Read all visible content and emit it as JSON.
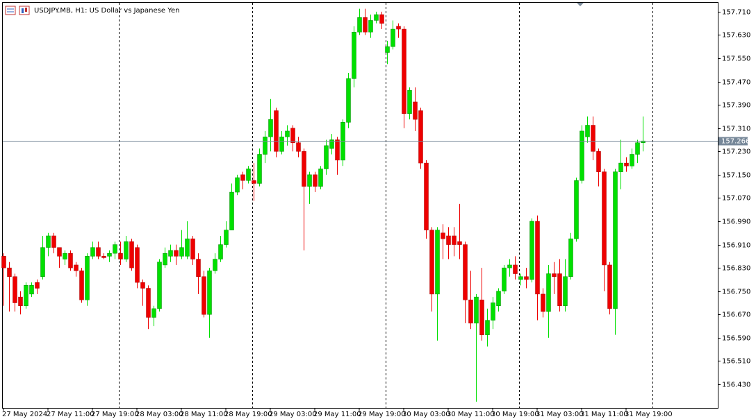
{
  "chart_data": {
    "type": "candlestick",
    "title": "USDJPY.MB, H1:  US Dollar vs Japanese Yen",
    "up_color": "#00e000",
    "down_color": "#ee0000",
    "price_line": 157.266,
    "ylim": [
      156.349,
      157.743
    ],
    "yticks": [
      {
        "value": 157.71,
        "label": "157.710"
      },
      {
        "value": 157.63,
        "label": "157.630"
      },
      {
        "value": 157.55,
        "label": "157.550"
      },
      {
        "value": 157.47,
        "label": "157.470"
      },
      {
        "value": 157.39,
        "label": "157.390"
      },
      {
        "value": 157.31,
        "label": "157.310"
      },
      {
        "value": 157.23,
        "label": "157.230"
      },
      {
        "value": 157.15,
        "label": "157.150"
      },
      {
        "value": 157.07,
        "label": "157.070"
      },
      {
        "value": 156.99,
        "label": "156.990"
      },
      {
        "value": 156.91,
        "label": "156.910"
      },
      {
        "value": 156.83,
        "label": "156.830"
      },
      {
        "value": 156.75,
        "label": "156.750"
      },
      {
        "value": 156.67,
        "label": "156.670"
      },
      {
        "value": 156.59,
        "label": "156.590"
      },
      {
        "value": 156.51,
        "label": "156.510"
      },
      {
        "value": 156.43,
        "label": "156.430"
      }
    ],
    "categories": [
      "27 May 2024",
      null,
      null,
      null,
      null,
      null,
      null,
      null,
      "27 May 11:00",
      null,
      null,
      null,
      null,
      null,
      null,
      null,
      "27 May 19:00",
      null,
      null,
      null,
      null,
      null,
      null,
      null,
      "28 May 03:00",
      null,
      null,
      null,
      null,
      null,
      null,
      null,
      "28 May 11:00",
      null,
      null,
      null,
      null,
      null,
      null,
      null,
      "28 May 19:00",
      null,
      null,
      null,
      null,
      null,
      null,
      null,
      "29 May 03:00",
      null,
      null,
      null,
      null,
      null,
      null,
      null,
      "29 May 11:00",
      null,
      null,
      null,
      null,
      null,
      null,
      null,
      "29 May 19:00",
      null,
      null,
      null,
      null,
      null,
      null,
      null,
      "30 May 03:00",
      null,
      null,
      null,
      null,
      null,
      null,
      null,
      "30 May 11:00",
      null,
      null,
      null,
      null,
      null,
      null,
      null,
      "30 May 19:00",
      null,
      null,
      null,
      null,
      null,
      null,
      null,
      "31 May 03:00",
      null,
      null,
      null,
      null,
      null,
      null,
      null,
      "31 May 11:00",
      null,
      null,
      null,
      null,
      null,
      null,
      null,
      "31 May 19:00",
      null,
      null,
      null
    ],
    "open": [
      156.87,
      156.83,
      156.8,
      156.73,
      156.7,
      156.74,
      156.78,
      156.8,
      156.9,
      156.94,
      156.9,
      156.86,
      156.88,
      156.84,
      156.82,
      156.72,
      156.87,
      156.9,
      156.87,
      156.87,
      156.88,
      156.88,
      156.86,
      156.92,
      156.9,
      156.78,
      156.76,
      156.66,
      156.69,
      156.84,
      156.87,
      156.89,
      156.87,
      156.87,
      156.93,
      156.86,
      156.8,
      156.67,
      156.82,
      156.86,
      156.91,
      156.96,
      157.09,
      157.15,
      157.13,
      157.13,
      157.12,
      157.22,
      157.28,
      157.37,
      157.23,
      157.28,
      157.31,
      157.26,
      157.23,
      157.11,
      157.15,
      157.11,
      157.17,
      157.24,
      157.27,
      157.2,
      157.33,
      157.48,
      157.64,
      157.69,
      157.64,
      157.68,
      157.7,
      157.57,
      157.59,
      157.66,
      157.65,
      157.36,
      157.4,
      157.37,
      157.19,
      156.96,
      156.74,
      156.95,
      156.94,
      156.94,
      156.92,
      156.91,
      156.72,
      156.64,
      156.72,
      156.6,
      156.65,
      156.7,
      156.75,
      156.83,
      156.84,
      156.79,
      156.8,
      156.79,
      156.99,
      156.74,
      156.68,
      156.81,
      156.81,
      156.7,
      156.8,
      156.93,
      157.13,
      157.28,
      157.32,
      157.23,
      157.16,
      156.84,
      156.69,
      157.16,
      157.19,
      157.18,
      157.22,
      157.26
    ],
    "high": [
      156.88,
      156.85,
      156.81,
      156.75,
      156.78,
      156.78,
      156.79,
      156.94,
      156.95,
      156.95,
      156.9,
      156.89,
      156.89,
      156.85,
      156.83,
      156.88,
      156.92,
      156.92,
      156.88,
      156.89,
      156.92,
      156.92,
      156.94,
      156.93,
      156.91,
      156.79,
      156.77,
      156.7,
      156.86,
      156.9,
      156.91,
      156.91,
      156.96,
      156.99,
      156.94,
      156.88,
      156.82,
      156.83,
      156.88,
      156.94,
      156.99,
      157.12,
      157.15,
      157.16,
      157.18,
      157.19,
      157.24,
      157.3,
      157.41,
      157.38,
      157.3,
      157.32,
      157.32,
      157.28,
      157.24,
      157.16,
      157.16,
      157.18,
      157.27,
      157.29,
      157.28,
      157.34,
      157.5,
      157.66,
      157.72,
      157.72,
      157.7,
      157.71,
      157.71,
      157.61,
      157.68,
      157.67,
      157.66,
      157.45,
      157.45,
      157.38,
      157.2,
      156.97,
      156.97,
      156.98,
      156.97,
      156.97,
      157.05,
      156.92,
      156.82,
      156.74,
      156.83,
      156.69,
      156.73,
      156.76,
      156.84,
      156.86,
      156.87,
      156.81,
      156.83,
      157.0,
      157.01,
      156.76,
      156.84,
      156.85,
      156.86,
      156.86,
      156.95,
      157.14,
      157.32,
      157.35,
      157.35,
      157.24,
      157.17,
      156.85,
      157.17,
      157.27,
      157.21,
      157.24,
      157.27,
      157.35
    ],
    "low": [
      156.7,
      156.68,
      156.68,
      156.67,
      156.69,
      156.73,
      156.74,
      156.79,
      156.87,
      156.88,
      156.83,
      156.84,
      156.82,
      156.8,
      156.71,
      156.7,
      156.86,
      156.86,
      156.86,
      156.85,
      156.86,
      156.84,
      156.85,
      156.82,
      156.76,
      156.7,
      156.62,
      156.63,
      156.68,
      156.83,
      156.85,
      156.84,
      156.86,
      156.86,
      156.84,
      156.74,
      156.66,
      156.59,
      156.81,
      156.85,
      156.9,
      156.96,
      157.08,
      157.1,
      157.12,
      157.06,
      157.11,
      157.19,
      157.23,
      157.21,
      157.22,
      157.25,
      157.23,
      157.21,
      156.89,
      157.05,
      157.09,
      157.1,
      157.15,
      157.22,
      157.15,
      157.18,
      157.31,
      157.45,
      157.63,
      157.63,
      157.62,
      157.67,
      157.65,
      157.53,
      157.58,
      157.62,
      157.31,
      157.34,
      157.3,
      157.17,
      156.93,
      156.68,
      156.58,
      156.86,
      156.86,
      156.87,
      156.86,
      156.64,
      156.62,
      156.37,
      156.58,
      156.56,
      156.62,
      156.68,
      156.74,
      156.8,
      156.79,
      156.77,
      156.76,
      156.78,
      156.65,
      156.66,
      156.59,
      156.74,
      156.68,
      156.68,
      156.79,
      156.92,
      157.12,
      157.26,
      157.2,
      157.11,
      156.75,
      156.67,
      156.6,
      157.1,
      157.16,
      157.17,
      157.19,
      157.23
    ],
    "close": [
      156.83,
      156.8,
      156.71,
      156.7,
      156.77,
      156.77,
      156.76,
      156.9,
      156.94,
      156.9,
      156.87,
      156.88,
      156.83,
      156.82,
      156.72,
      156.87,
      156.9,
      156.87,
      156.865,
      156.88,
      156.91,
      156.86,
      156.92,
      156.83,
      156.78,
      156.76,
      156.66,
      156.69,
      156.85,
      156.88,
      156.89,
      156.87,
      156.9,
      156.93,
      156.86,
      156.8,
      156.67,
      156.82,
      156.86,
      156.91,
      156.96,
      157.09,
      157.14,
      157.13,
      157.17,
      157.12,
      157.22,
      157.28,
      157.34,
      157.23,
      157.28,
      157.3,
      157.26,
      157.23,
      157.11,
      157.15,
      157.11,
      157.17,
      157.25,
      157.27,
      157.2,
      157.33,
      157.48,
      157.64,
      157.69,
      157.64,
      157.68,
      157.7,
      157.67,
      157.59,
      157.65,
      157.65,
      157.36,
      157.44,
      157.34,
      157.19,
      156.96,
      156.74,
      156.96,
      156.93,
      156.91,
      156.91,
      156.91,
      156.72,
      156.64,
      156.73,
      156.6,
      156.65,
      156.71,
      156.75,
      156.83,
      156.84,
      156.81,
      156.8,
      156.79,
      156.99,
      156.74,
      156.68,
      156.81,
      156.8,
      156.7,
      156.8,
      156.93,
      157.13,
      157.3,
      157.32,
      157.23,
      157.16,
      156.84,
      156.69,
      157.16,
      157.19,
      157.18,
      157.22,
      157.26,
      157.266
    ]
  }
}
